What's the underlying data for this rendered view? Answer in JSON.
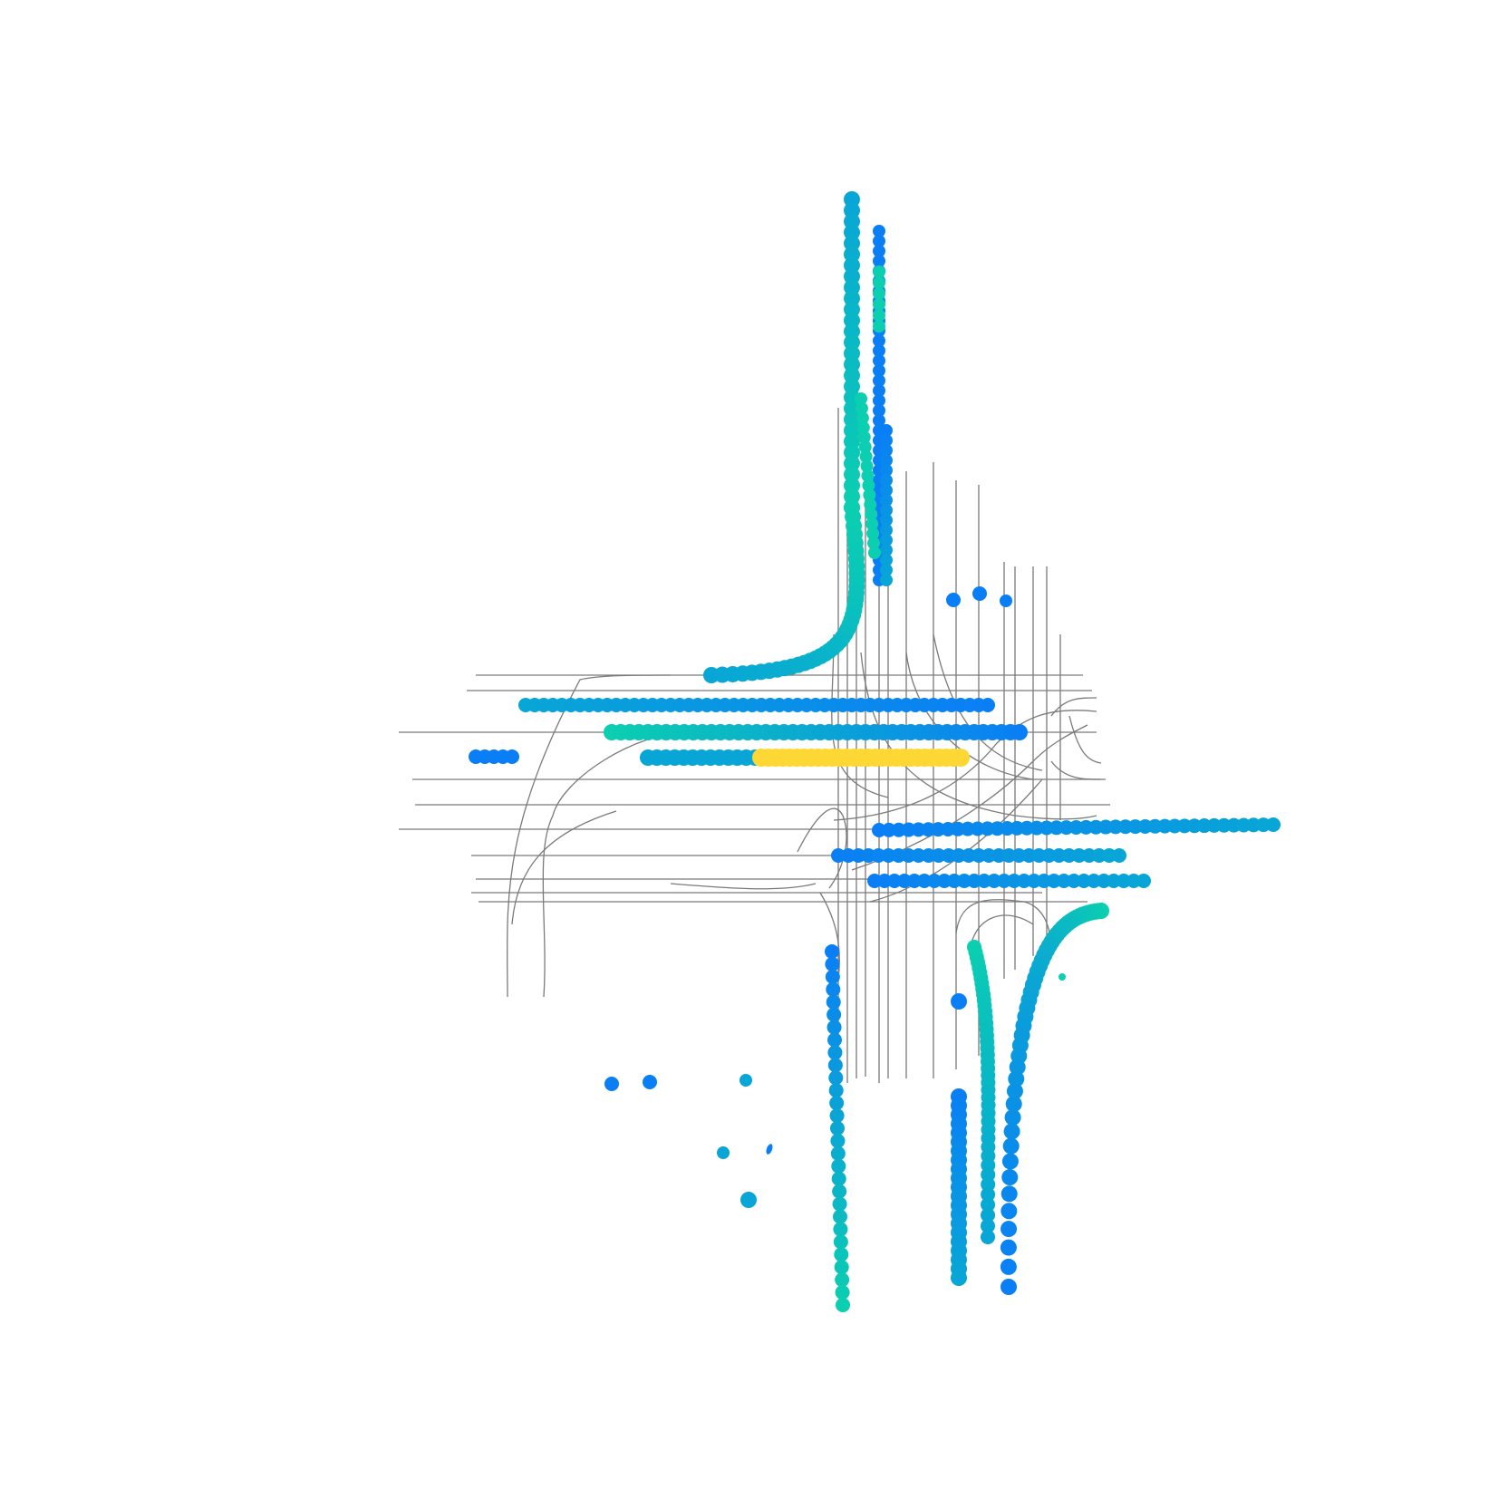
{
  "scene": {
    "type": "trajectory-map",
    "background": "#ffffff",
    "lane_color": "#7a7a7a",
    "colors": {
      "blue": "#0a7ff5",
      "mid": "#08a6d6",
      "teal": "#0bcfb0",
      "ego": "#fdd835"
    }
  }
}
